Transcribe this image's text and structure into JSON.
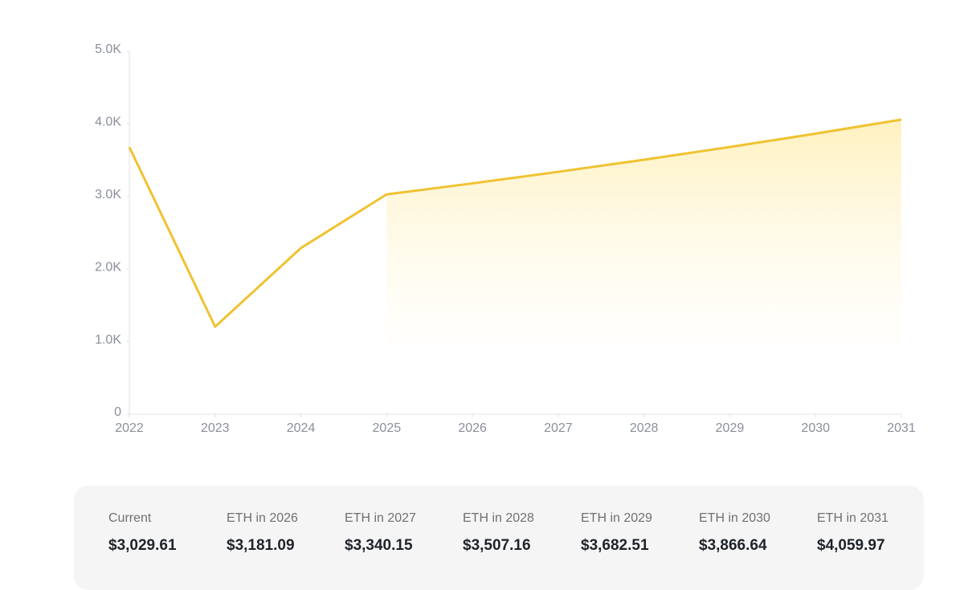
{
  "chart_data": {
    "type": "line",
    "x": [
      2022,
      2023,
      2024,
      2025,
      2026,
      2027,
      2028,
      2029,
      2030,
      2031
    ],
    "series": [
      {
        "color": "#f0c232",
        "values": [
          3680,
          1205,
          2290,
          3029.61,
          3181.09,
          3340.15,
          3507.16,
          3682.51,
          3866.64,
          4059.97
        ]
      }
    ],
    "xlim": [
      2022,
      2031
    ],
    "xticks": [
      2022,
      2023,
      2024,
      2025,
      2026,
      2027,
      2028,
      2029,
      2030,
      2031
    ],
    "ylim": [
      0,
      5000
    ],
    "yticks": [
      0,
      {
        "value": 1000,
        "label": "1.0K"
      },
      {
        "value": 2000,
        "label": "2.0K"
      },
      {
        "value": 3000,
        "label": "3.0K"
      },
      {
        "value": 4000,
        "label": "4.0K"
      },
      {
        "value": 5000,
        "label": "5.0K"
      }
    ],
    "shaded_from": 2025
  },
  "summary": [
    {
      "label": "Current",
      "value": "$3,029.61"
    },
    {
      "label": "ETH in 2026",
      "value": "$3,181.09"
    },
    {
      "label": "ETH in 2027",
      "value": "$3,340.15"
    },
    {
      "label": "ETH in 2028",
      "value": "$3,507.16"
    },
    {
      "label": "ETH in 2029",
      "value": "$3,682.51"
    },
    {
      "label": "ETH in 2030",
      "value": "$3,866.64"
    },
    {
      "label": "ETH in 2031",
      "value": "$4,059.97"
    }
  ]
}
